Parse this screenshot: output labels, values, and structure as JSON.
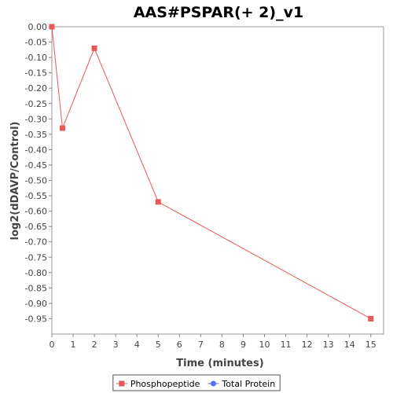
{
  "chart_data": {
    "type": "line",
    "title": "AAS#PSPAR(+ 2)_v1",
    "xlabel": "Time (minutes)",
    "ylabel": "log2(dDAVP/Control)",
    "xlim": [
      0,
      15.6
    ],
    "ylim": [
      -1.0,
      0.0
    ],
    "x_ticks": [
      0,
      1,
      2,
      3,
      4,
      5,
      6,
      7,
      8,
      9,
      10,
      11,
      12,
      13,
      14,
      15
    ],
    "y_ticks": [
      0.0,
      -0.05,
      -0.1,
      -0.15,
      -0.2,
      -0.25,
      -0.3,
      -0.35,
      -0.4,
      -0.45,
      -0.5,
      -0.55,
      -0.6,
      -0.65,
      -0.7,
      -0.75,
      -0.8,
      -0.85,
      -0.9,
      -0.95
    ],
    "y_tick_labels": [
      "0.00",
      "-0.05",
      "-0.10",
      "-0.15",
      "-0.20",
      "-0.25",
      "-0.30",
      "-0.35",
      "-0.40",
      "-0.45",
      "-0.50",
      "-0.55",
      "-0.60",
      "-0.65",
      "-0.70",
      "-0.75",
      "-0.80",
      "-0.85",
      "-0.90",
      "-0.95"
    ],
    "grid": false,
    "legend_position": "bottom",
    "series": [
      {
        "name": "Phosphopeptide",
        "color": "#e85858",
        "marker": "square",
        "x": [
          0,
          0.5,
          2,
          5,
          15
        ],
        "y": [
          0.0,
          -0.33,
          -0.07,
          -0.57,
          -0.95
        ]
      },
      {
        "name": "Total Protein",
        "color": "#5b6ef0",
        "marker": "circle",
        "x": [],
        "y": []
      }
    ]
  }
}
